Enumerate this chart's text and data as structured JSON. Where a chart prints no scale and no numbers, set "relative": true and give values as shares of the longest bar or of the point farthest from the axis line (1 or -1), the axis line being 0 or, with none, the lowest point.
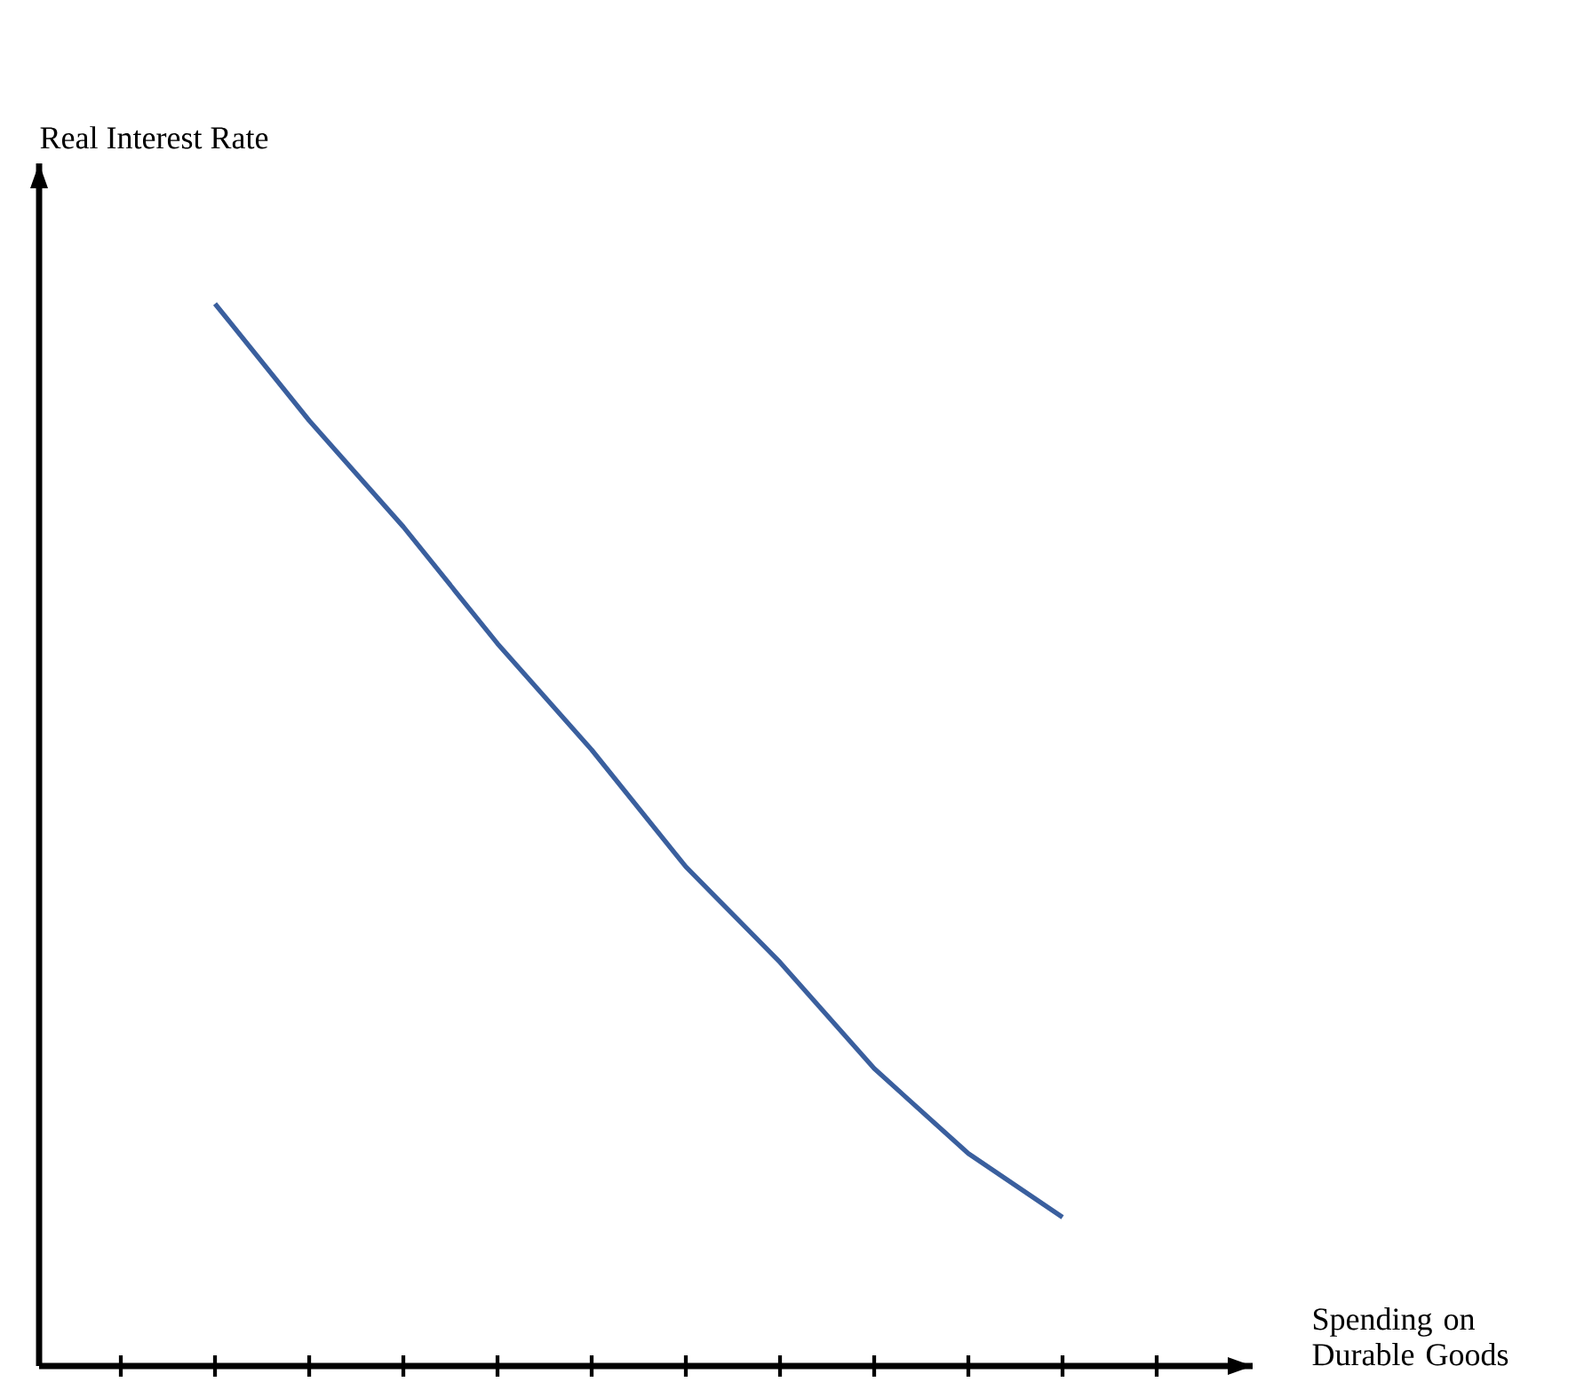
{
  "chart_data": {
    "type": "line",
    "relative": true,
    "xlabel": "Spending on Durable Goods",
    "ylabel": "Real Interest Rate",
    "categories": [
      null,
      null,
      null,
      null,
      null,
      null,
      null,
      null,
      null,
      null,
      null,
      null
    ],
    "series": [
      {
        "color": "#3a5f9e",
        "values": [
          null,
          1,
          0.89,
          0.79,
          0.68,
          0.58,
          0.47,
          0.38,
          0.28,
          0.2,
          0.14,
          null
        ]
      }
    ],
    "marker": "none",
    "line_style": "solid",
    "grid": false
  }
}
